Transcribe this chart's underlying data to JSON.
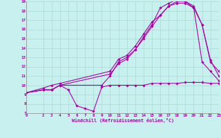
{
  "xlabel": "Windchill (Refroidissement éolien,°C)",
  "background_color": "#c8f0ee",
  "grid_color": "#a8d8d0",
  "line_color": "#aa00aa",
  "xlim": [
    0,
    23
  ],
  "ylim": [
    7,
    19
  ],
  "xticks": [
    0,
    2,
    3,
    4,
    5,
    6,
    7,
    8,
    9,
    10,
    11,
    12,
    13,
    14,
    15,
    16,
    17,
    18,
    19,
    20,
    21,
    22,
    23
  ],
  "yticks": [
    7,
    8,
    9,
    10,
    11,
    12,
    13,
    14,
    15,
    16,
    17,
    18,
    19
  ],
  "line1_x": [
    0,
    2,
    3,
    4,
    5,
    6,
    7,
    8,
    9,
    10,
    11,
    12,
    13,
    14,
    15,
    16,
    17,
    18,
    19,
    20,
    21,
    22,
    23
  ],
  "line1_y": [
    9.2,
    9.5,
    9.5,
    10.0,
    9.5,
    7.8,
    7.5,
    7.2,
    9.8,
    10.0,
    10.0,
    10.0,
    10.0,
    10.0,
    10.2,
    10.2,
    10.2,
    10.2,
    10.3,
    10.3,
    10.3,
    10.2,
    10.2
  ],
  "line2_x": [
    0,
    2,
    3,
    4,
    9,
    10,
    11,
    12,
    13,
    14,
    15,
    16,
    17,
    18,
    19,
    20,
    21,
    22,
    23
  ],
  "line2_y": [
    9.2,
    9.5,
    9.5,
    10.0,
    10.0,
    11.0,
    12.5,
    13.0,
    13.8,
    15.2,
    16.5,
    18.3,
    18.8,
    19.2,
    19.0,
    18.3,
    12.5,
    11.5,
    10.5
  ],
  "line3_x": [
    0,
    2,
    3,
    4,
    10,
    11,
    12,
    13,
    14,
    15,
    16,
    17,
    18,
    19,
    20,
    21,
    22,
    23
  ],
  "line3_y": [
    9.2,
    9.5,
    9.5,
    10.0,
    11.2,
    12.3,
    12.8,
    13.8,
    15.0,
    16.3,
    17.5,
    18.5,
    19.0,
    19.0,
    18.5,
    16.5,
    12.7,
    11.0
  ],
  "line4_x": [
    0,
    2,
    3,
    4,
    10,
    11,
    12,
    13,
    14,
    15,
    16,
    17,
    18,
    19,
    20,
    21,
    22,
    23
  ],
  "line4_y": [
    9.2,
    9.7,
    10.0,
    10.2,
    11.5,
    12.8,
    13.2,
    14.2,
    15.5,
    16.8,
    17.5,
    18.5,
    18.8,
    18.8,
    18.3,
    16.5,
    12.5,
    11.5
  ]
}
